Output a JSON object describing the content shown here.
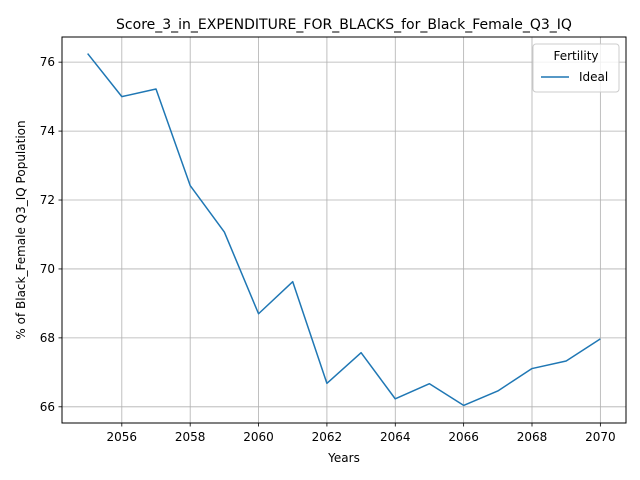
{
  "chart_data": {
    "type": "line",
    "title": "Score_3_in_EXPENDITURE_FOR_BLACKS_for_Black_Female_Q3_IQ",
    "xlabel": "Years",
    "ylabel": "% of Black_Female Q3_IQ Population",
    "xlim": [
      2054.25,
      2070.75
    ],
    "ylim": [
      65.53,
      76.73
    ],
    "xticks": [
      2056,
      2058,
      2060,
      2062,
      2064,
      2066,
      2068,
      2070
    ],
    "yticks": [
      66,
      68,
      70,
      72,
      74,
      76
    ],
    "grid": true,
    "legend": {
      "title": "Fertility",
      "placement": "top-right"
    },
    "series": [
      {
        "name": "Ideal",
        "color": "#1f77b4",
        "x": [
          2055,
          2056,
          2057,
          2058,
          2059,
          2060,
          2061,
          2062,
          2063,
          2064,
          2065,
          2066,
          2067,
          2068,
          2069,
          2070
        ],
        "y": [
          76.25,
          75.0,
          75.22,
          72.42,
          71.07,
          68.7,
          69.63,
          66.68,
          67.57,
          66.23,
          66.67,
          66.04,
          66.46,
          67.11,
          67.33,
          67.97
        ]
      }
    ]
  }
}
